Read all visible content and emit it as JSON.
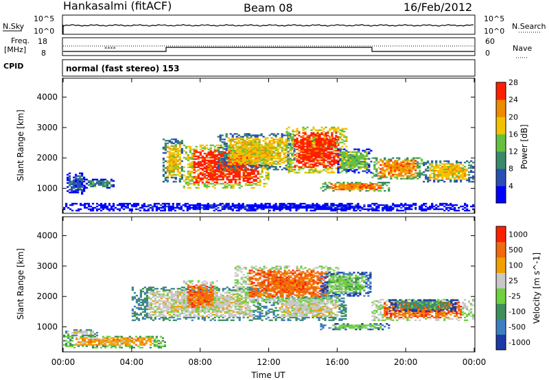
{
  "header": {
    "site": "Hankasalmi (fitACF)",
    "beam": "Beam 08",
    "date": "16/Feb/2012"
  },
  "top_panel": {
    "left_label": "N.Sky",
    "left_tick_top": "10^5",
    "left_tick_bottom": "10^0",
    "right_tick_top": "10^5",
    "right_tick_bottom": "10^0",
    "right_label": "N.Search"
  },
  "freq_panel": {
    "label_line1": "Freq.",
    "label_line2": "[MHz]",
    "left_tick_top": "18",
    "left_tick_bottom": "8",
    "right_tick_top": "60",
    "right_tick_bottom": "0",
    "right_label": "Nave"
  },
  "cpid_panel": {
    "label": "CPID",
    "mode": "normal (fast stereo) 153"
  },
  "chart_data": [
    {
      "type": "heatmap",
      "name": "power",
      "ylabel": "Slant Range [km]",
      "y_ticks": [
        "1000",
        "2000",
        "3000",
        "4000"
      ],
      "ylim": [
        200,
        4600
      ],
      "colorbar_label": "Power [dB]",
      "colorbar_ticks": [
        "4",
        "8",
        "12",
        "16",
        "20",
        "24",
        "28"
      ],
      "colorbar_colors": [
        "#0000ff",
        "#2a4fb4",
        "#3a8a6a",
        "#66c040",
        "#f2c200",
        "#f08a00",
        "#ff2000"
      ],
      "blobs": [
        {
          "t": [
            0.2,
            1.2
          ],
          "r": [
            800,
            1500
          ],
          "level": 1
        },
        {
          "t": [
            1.2,
            3.0
          ],
          "r": [
            1000,
            1300
          ],
          "level": 2
        },
        {
          "t": [
            5.8,
            7.0
          ],
          "r": [
            1200,
            2600
          ],
          "level": 4
        },
        {
          "t": [
            7.0,
            12.0
          ],
          "r": [
            1000,
            2400
          ],
          "level": 6
        },
        {
          "t": [
            9.0,
            13.5
          ],
          "r": [
            1600,
            2800
          ],
          "level": 4
        },
        {
          "t": [
            13.0,
            16.5
          ],
          "r": [
            1500,
            3000
          ],
          "level": 6
        },
        {
          "t": [
            14.5,
            16.0
          ],
          "r": [
            2300,
            2700
          ],
          "level": 6
        },
        {
          "t": [
            16.0,
            18.0
          ],
          "r": [
            1500,
            2300
          ],
          "level": 3
        },
        {
          "t": [
            15.0,
            19.0
          ],
          "r": [
            900,
            1200
          ],
          "level": 5
        },
        {
          "t": [
            18.0,
            21.0
          ],
          "r": [
            1300,
            2000
          ],
          "level": 5
        },
        {
          "t": [
            21.0,
            24.0
          ],
          "r": [
            1200,
            1900
          ],
          "level": 4
        },
        {
          "t": [
            0.0,
            24.0
          ],
          "r": [
            250,
            500
          ],
          "level": 0
        }
      ]
    },
    {
      "type": "heatmap",
      "name": "velocity",
      "ylabel": "Slant Range [km]",
      "y_ticks": [
        "1000",
        "2000",
        "3000",
        "4000"
      ],
      "ylim": [
        200,
        4600
      ],
      "x_ticks": [
        "00:00",
        "04:00",
        "08:00",
        "12:00",
        "16:00",
        "20:00",
        "00:00"
      ],
      "xlim": [
        0,
        24
      ],
      "xlabel": "Time UT",
      "colorbar_label": "Velocity [m s^-1]",
      "colorbar_ticks": [
        "1000",
        "500",
        "100",
        "25",
        "-25",
        "-100",
        "-500",
        "-1000"
      ],
      "colorbar_colors": [
        "#1a3aa8",
        "#3e7fc0",
        "#3f8f5a",
        "#6fd040",
        "#c8c8c8",
        "#f0a000",
        "#f06a10",
        "#ff2000"
      ],
      "blobs": [
        {
          "t": [
            0.0,
            6.0
          ],
          "r": [
            300,
            700
          ],
          "level": 5
        },
        {
          "t": [
            0.0,
            2.0
          ],
          "r": [
            700,
            900
          ],
          "level": 4
        },
        {
          "t": [
            4.0,
            12.0
          ],
          "r": [
            1200,
            2300
          ],
          "level": 4
        },
        {
          "t": [
            12.0,
            16.5
          ],
          "r": [
            1200,
            2000
          ],
          "level": 4
        },
        {
          "t": [
            7.0,
            9.0
          ],
          "r": [
            1500,
            2500
          ],
          "level": 6
        },
        {
          "t": [
            10.0,
            16.0
          ],
          "r": [
            1800,
            3000
          ],
          "level": 6
        },
        {
          "t": [
            15.0,
            18.0
          ],
          "r": [
            2000,
            2800
          ],
          "level": 3
        },
        {
          "t": [
            15.0,
            19.0
          ],
          "r": [
            900,
            1100
          ],
          "level": 3
        },
        {
          "t": [
            18.0,
            24.0
          ],
          "r": [
            1200,
            1900
          ],
          "level": 6
        },
        {
          "t": [
            19.0,
            23.0
          ],
          "r": [
            1500,
            1900
          ],
          "level": 2
        }
      ]
    }
  ]
}
